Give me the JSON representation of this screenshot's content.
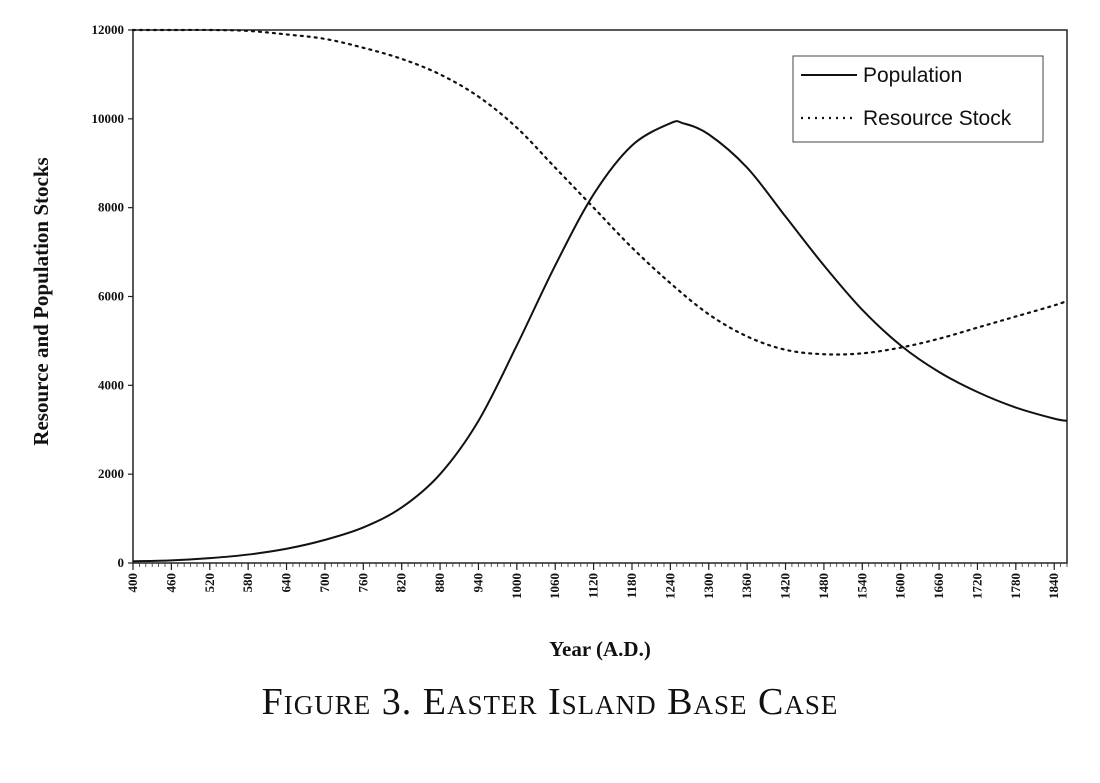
{
  "caption": "Figure 3.  Easter Island Base Case",
  "chart_data": {
    "type": "line",
    "title": "",
    "xlabel": "Year (A.D.)",
    "ylabel": "Resource and Population Stocks",
    "xlim": [
      400,
      1860
    ],
    "ylim": [
      0,
      12000
    ],
    "y_ticks": [
      0,
      2000,
      4000,
      6000,
      8000,
      10000,
      12000
    ],
    "x_ticks": [
      400,
      460,
      520,
      580,
      640,
      700,
      760,
      820,
      880,
      940,
      1000,
      1060,
      1120,
      1180,
      1240,
      1300,
      1360,
      1420,
      1480,
      1540,
      1600,
      1660,
      1720,
      1780,
      1840
    ],
    "grid": false,
    "legend_position": "top-right",
    "series": [
      {
        "name": "Population",
        "style": "solid",
        "color": "#111111",
        "x": [
          400,
          460,
          520,
          580,
          640,
          700,
          760,
          820,
          880,
          940,
          1000,
          1060,
          1120,
          1180,
          1240,
          1260,
          1300,
          1360,
          1420,
          1480,
          1540,
          1600,
          1660,
          1720,
          1780,
          1840,
          1860
        ],
        "y": [
          40,
          60,
          110,
          190,
          320,
          520,
          800,
          1250,
          2000,
          3200,
          4900,
          6700,
          8300,
          9400,
          9900,
          9900,
          9650,
          8900,
          7800,
          6700,
          5700,
          4900,
          4300,
          3850,
          3500,
          3250,
          3200
        ]
      },
      {
        "name": "Resource Stock",
        "style": "dotted",
        "color": "#111111",
        "x": [
          400,
          460,
          520,
          580,
          640,
          700,
          760,
          820,
          880,
          940,
          1000,
          1060,
          1120,
          1180,
          1240,
          1300,
          1360,
          1420,
          1480,
          1540,
          1600,
          1660,
          1720,
          1780,
          1840,
          1860
        ],
        "y": [
          12000,
          12000,
          12000,
          11980,
          11900,
          11800,
          11600,
          11350,
          11000,
          10500,
          9800,
          8900,
          8000,
          7100,
          6300,
          5600,
          5100,
          4800,
          4700,
          4720,
          4850,
          5050,
          5300,
          5550,
          5800,
          5900
        ]
      }
    ]
  }
}
